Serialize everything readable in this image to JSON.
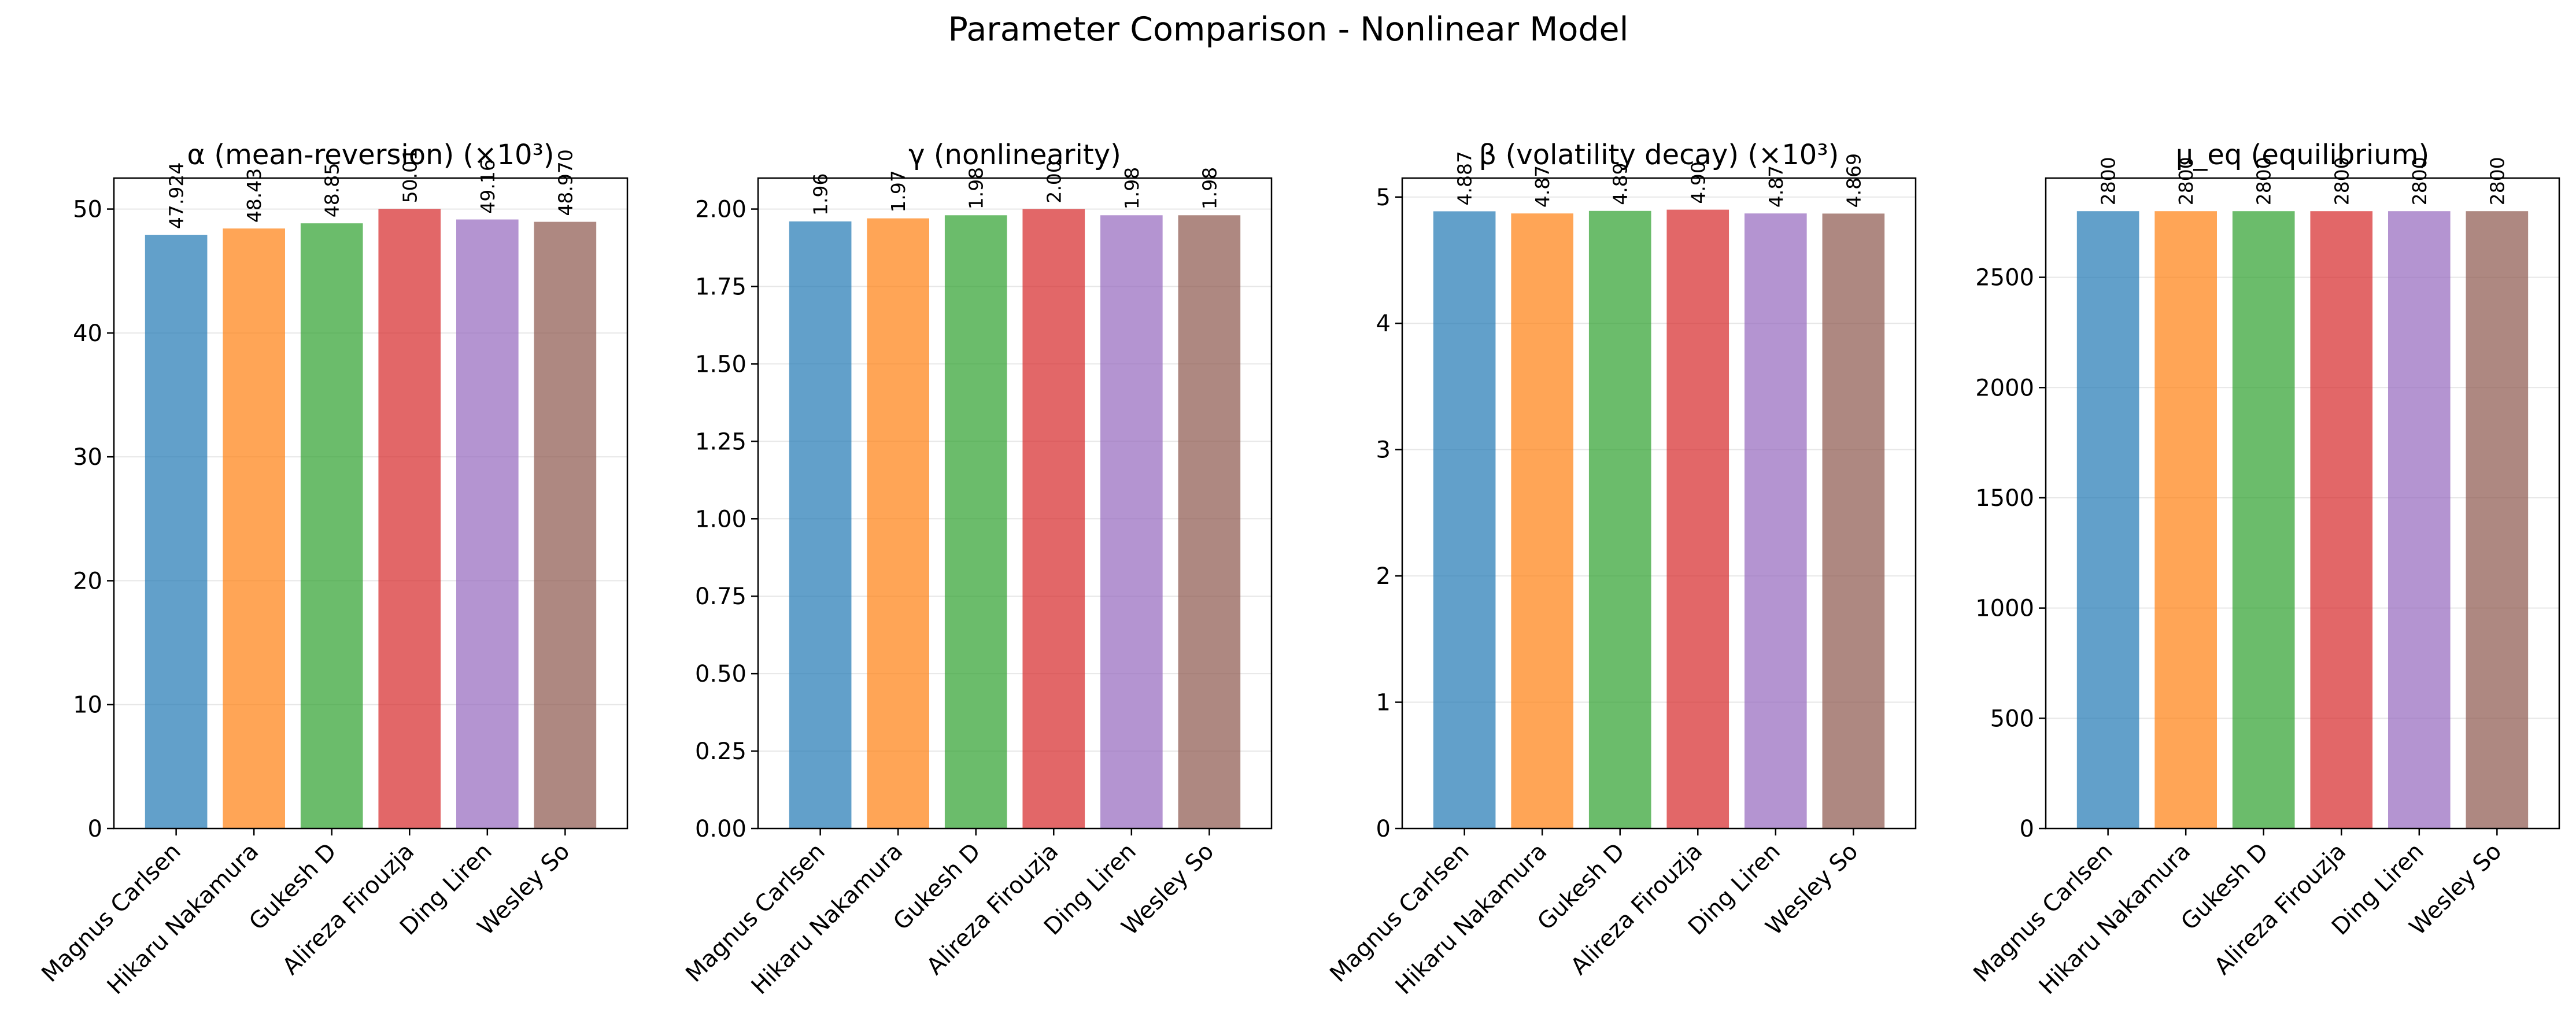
{
  "figure": {
    "title": "Parameter Comparison - Nonlinear Model"
  },
  "chart_data": [
    {
      "type": "bar",
      "title": "α (mean-reversion) (×10³)",
      "categories": [
        "Magnus Carlsen",
        "Hikaru Nakamura",
        "Gukesh D",
        "Alireza Firouzja",
        "Ding Liren",
        "Wesley So"
      ],
      "values": [
        47.924,
        48.43,
        48.85,
        50.01,
        49.16,
        48.97
      ],
      "value_labels": [
        "47.924",
        "48.43",
        "48.85",
        "50.01",
        "49.16",
        "48.970"
      ],
      "ylim": [
        0,
        52.5
      ],
      "yticks": [
        0,
        10,
        20,
        30,
        40,
        50
      ],
      "ytick_labels": [
        "0",
        "10",
        "20",
        "30",
        "40",
        "50"
      ],
      "xlabel": "",
      "ylabel": "",
      "grid": "y",
      "legend": "none"
    },
    {
      "type": "bar",
      "title": "γ (nonlinearity)",
      "categories": [
        "Magnus Carlsen",
        "Hikaru Nakamura",
        "Gukesh D",
        "Alireza Firouzja",
        "Ding Liren",
        "Wesley So"
      ],
      "values": [
        1.96,
        1.97,
        1.98,
        2.0,
        1.98,
        1.98
      ],
      "value_labels": [
        "1.96",
        "1.97",
        "1.98",
        "2.00",
        "1.98",
        "1.98"
      ],
      "ylim": [
        0,
        2.1
      ],
      "yticks": [
        0,
        0.25,
        0.5,
        0.75,
        1.0,
        1.25,
        1.5,
        1.75,
        2.0
      ],
      "ytick_labels": [
        "0.00",
        "0.25",
        "0.50",
        "0.75",
        "1.00",
        "1.25",
        "1.50",
        "1.75",
        "2.00"
      ],
      "xlabel": "",
      "ylabel": "",
      "grid": "y",
      "legend": "none"
    },
    {
      "type": "bar",
      "title": "β (volatility decay) (×10³)",
      "categories": [
        "Magnus Carlsen",
        "Hikaru Nakamura",
        "Gukesh D",
        "Alireza Firouzja",
        "Ding Liren",
        "Wesley So"
      ],
      "values": [
        4.887,
        4.87,
        4.89,
        4.9,
        4.87,
        4.869
      ],
      "value_labels": [
        "4.887",
        "4.87",
        "4.89",
        "4.90",
        "4.87",
        "4.869"
      ],
      "ylim": [
        0,
        5.15
      ],
      "yticks": [
        0,
        1,
        2,
        3,
        4,
        5
      ],
      "ytick_labels": [
        "0",
        "1",
        "2",
        "3",
        "4",
        "5"
      ],
      "xlabel": "",
      "ylabel": "",
      "grid": "y",
      "legend": "none"
    },
    {
      "type": "bar",
      "title": "μ_eq (equilibrium)",
      "categories": [
        "Magnus Carlsen",
        "Hikaru Nakamura",
        "Gukesh D",
        "Alireza Firouzja",
        "Ding Liren",
        "Wesley So"
      ],
      "values": [
        2800,
        2800,
        2800,
        2800,
        2800,
        2800
      ],
      "value_labels": [
        "2800",
        "2800",
        "2800",
        "2800",
        "2800",
        "2800"
      ],
      "ylim": [
        0,
        2950
      ],
      "yticks": [
        0,
        500,
        1000,
        1500,
        2000,
        2500
      ],
      "ytick_labels": [
        "0",
        "500",
        "1000",
        "1500",
        "2000",
        "2500"
      ],
      "xlabel": "",
      "ylabel": "",
      "grid": "y",
      "legend": "none"
    }
  ],
  "colors": [
    "#1f77b4",
    "#ff7f0e",
    "#2ca02c",
    "#d62728",
    "#9467bd",
    "#8c564b"
  ],
  "bar_alpha": 0.7
}
